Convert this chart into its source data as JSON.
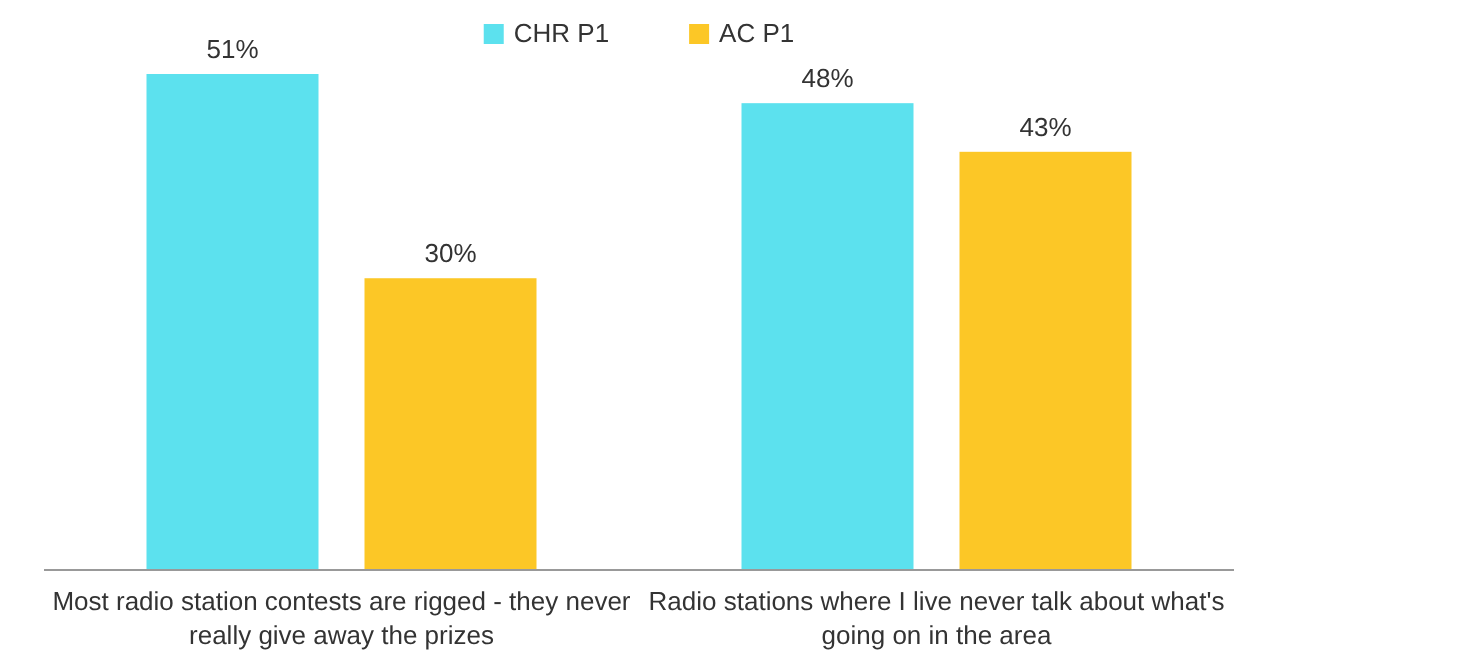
{
  "chart_data": {
    "type": "bar",
    "categories": [
      "Most radio station contests are rigged - they never really give away the prizes",
      "Radio stations where I live never talk about what's going on in the area"
    ],
    "series": [
      {
        "name": "CHR P1",
        "color": "#5ce1ee",
        "values": [
          51,
          48
        ],
        "value_labels": [
          "51%",
          "48%"
        ]
      },
      {
        "name": "AC P1",
        "color": "#fcc726",
        "values": [
          30,
          43
        ],
        "value_labels": [
          "30%",
          "43%"
        ]
      }
    ],
    "legend": "top"
  }
}
